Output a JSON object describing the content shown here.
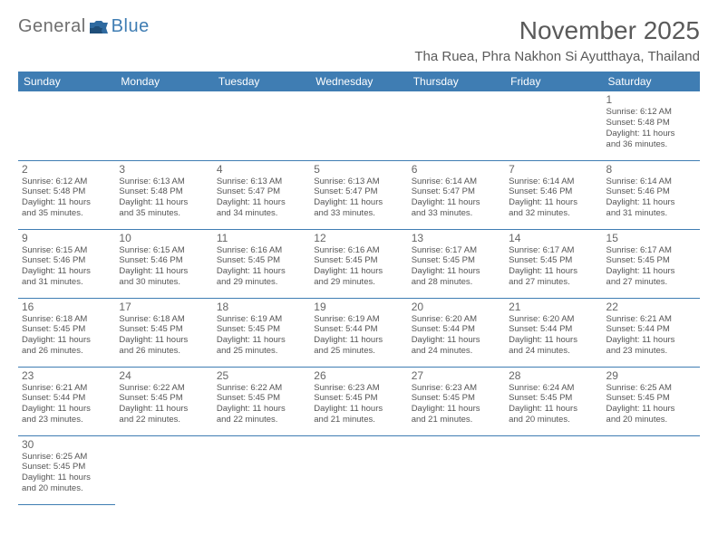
{
  "logo": {
    "text_a": "General",
    "text_b": "Blue"
  },
  "title": "November 2025",
  "location": "Tha Ruea, Phra Nakhon Si Ayutthaya, Thailand",
  "colors": {
    "header_bg": "#3f7db3",
    "header_fg": "#ffffff",
    "rule": "#3f7db3",
    "text": "#555555",
    "title": "#5a5a5a"
  },
  "weekdays": [
    "Sunday",
    "Monday",
    "Tuesday",
    "Wednesday",
    "Thursday",
    "Friday",
    "Saturday"
  ],
  "weeks": [
    [
      null,
      null,
      null,
      null,
      null,
      null,
      {
        "n": "1",
        "sr": "Sunrise: 6:12 AM",
        "ss": "Sunset: 5:48 PM",
        "d1": "Daylight: 11 hours",
        "d2": "and 36 minutes."
      }
    ],
    [
      {
        "n": "2",
        "sr": "Sunrise: 6:12 AM",
        "ss": "Sunset: 5:48 PM",
        "d1": "Daylight: 11 hours",
        "d2": "and 35 minutes."
      },
      {
        "n": "3",
        "sr": "Sunrise: 6:13 AM",
        "ss": "Sunset: 5:48 PM",
        "d1": "Daylight: 11 hours",
        "d2": "and 35 minutes."
      },
      {
        "n": "4",
        "sr": "Sunrise: 6:13 AM",
        "ss": "Sunset: 5:47 PM",
        "d1": "Daylight: 11 hours",
        "d2": "and 34 minutes."
      },
      {
        "n": "5",
        "sr": "Sunrise: 6:13 AM",
        "ss": "Sunset: 5:47 PM",
        "d1": "Daylight: 11 hours",
        "d2": "and 33 minutes."
      },
      {
        "n": "6",
        "sr": "Sunrise: 6:14 AM",
        "ss": "Sunset: 5:47 PM",
        "d1": "Daylight: 11 hours",
        "d2": "and 33 minutes."
      },
      {
        "n": "7",
        "sr": "Sunrise: 6:14 AM",
        "ss": "Sunset: 5:46 PM",
        "d1": "Daylight: 11 hours",
        "d2": "and 32 minutes."
      },
      {
        "n": "8",
        "sr": "Sunrise: 6:14 AM",
        "ss": "Sunset: 5:46 PM",
        "d1": "Daylight: 11 hours",
        "d2": "and 31 minutes."
      }
    ],
    [
      {
        "n": "9",
        "sr": "Sunrise: 6:15 AM",
        "ss": "Sunset: 5:46 PM",
        "d1": "Daylight: 11 hours",
        "d2": "and 31 minutes."
      },
      {
        "n": "10",
        "sr": "Sunrise: 6:15 AM",
        "ss": "Sunset: 5:46 PM",
        "d1": "Daylight: 11 hours",
        "d2": "and 30 minutes."
      },
      {
        "n": "11",
        "sr": "Sunrise: 6:16 AM",
        "ss": "Sunset: 5:45 PM",
        "d1": "Daylight: 11 hours",
        "d2": "and 29 minutes."
      },
      {
        "n": "12",
        "sr": "Sunrise: 6:16 AM",
        "ss": "Sunset: 5:45 PM",
        "d1": "Daylight: 11 hours",
        "d2": "and 29 minutes."
      },
      {
        "n": "13",
        "sr": "Sunrise: 6:17 AM",
        "ss": "Sunset: 5:45 PM",
        "d1": "Daylight: 11 hours",
        "d2": "and 28 minutes."
      },
      {
        "n": "14",
        "sr": "Sunrise: 6:17 AM",
        "ss": "Sunset: 5:45 PM",
        "d1": "Daylight: 11 hours",
        "d2": "and 27 minutes."
      },
      {
        "n": "15",
        "sr": "Sunrise: 6:17 AM",
        "ss": "Sunset: 5:45 PM",
        "d1": "Daylight: 11 hours",
        "d2": "and 27 minutes."
      }
    ],
    [
      {
        "n": "16",
        "sr": "Sunrise: 6:18 AM",
        "ss": "Sunset: 5:45 PM",
        "d1": "Daylight: 11 hours",
        "d2": "and 26 minutes."
      },
      {
        "n": "17",
        "sr": "Sunrise: 6:18 AM",
        "ss": "Sunset: 5:45 PM",
        "d1": "Daylight: 11 hours",
        "d2": "and 26 minutes."
      },
      {
        "n": "18",
        "sr": "Sunrise: 6:19 AM",
        "ss": "Sunset: 5:45 PM",
        "d1": "Daylight: 11 hours",
        "d2": "and 25 minutes."
      },
      {
        "n": "19",
        "sr": "Sunrise: 6:19 AM",
        "ss": "Sunset: 5:44 PM",
        "d1": "Daylight: 11 hours",
        "d2": "and 25 minutes."
      },
      {
        "n": "20",
        "sr": "Sunrise: 6:20 AM",
        "ss": "Sunset: 5:44 PM",
        "d1": "Daylight: 11 hours",
        "d2": "and 24 minutes."
      },
      {
        "n": "21",
        "sr": "Sunrise: 6:20 AM",
        "ss": "Sunset: 5:44 PM",
        "d1": "Daylight: 11 hours",
        "d2": "and 24 minutes."
      },
      {
        "n": "22",
        "sr": "Sunrise: 6:21 AM",
        "ss": "Sunset: 5:44 PM",
        "d1": "Daylight: 11 hours",
        "d2": "and 23 minutes."
      }
    ],
    [
      {
        "n": "23",
        "sr": "Sunrise: 6:21 AM",
        "ss": "Sunset: 5:44 PM",
        "d1": "Daylight: 11 hours",
        "d2": "and 23 minutes."
      },
      {
        "n": "24",
        "sr": "Sunrise: 6:22 AM",
        "ss": "Sunset: 5:45 PM",
        "d1": "Daylight: 11 hours",
        "d2": "and 22 minutes."
      },
      {
        "n": "25",
        "sr": "Sunrise: 6:22 AM",
        "ss": "Sunset: 5:45 PM",
        "d1": "Daylight: 11 hours",
        "d2": "and 22 minutes."
      },
      {
        "n": "26",
        "sr": "Sunrise: 6:23 AM",
        "ss": "Sunset: 5:45 PM",
        "d1": "Daylight: 11 hours",
        "d2": "and 21 minutes."
      },
      {
        "n": "27",
        "sr": "Sunrise: 6:23 AM",
        "ss": "Sunset: 5:45 PM",
        "d1": "Daylight: 11 hours",
        "d2": "and 21 minutes."
      },
      {
        "n": "28",
        "sr": "Sunrise: 6:24 AM",
        "ss": "Sunset: 5:45 PM",
        "d1": "Daylight: 11 hours",
        "d2": "and 20 minutes."
      },
      {
        "n": "29",
        "sr": "Sunrise: 6:25 AM",
        "ss": "Sunset: 5:45 PM",
        "d1": "Daylight: 11 hours",
        "d2": "and 20 minutes."
      }
    ],
    [
      {
        "n": "30",
        "sr": "Sunrise: 6:25 AM",
        "ss": "Sunset: 5:45 PM",
        "d1": "Daylight: 11 hours",
        "d2": "and 20 minutes."
      },
      null,
      null,
      null,
      null,
      null,
      null
    ]
  ]
}
